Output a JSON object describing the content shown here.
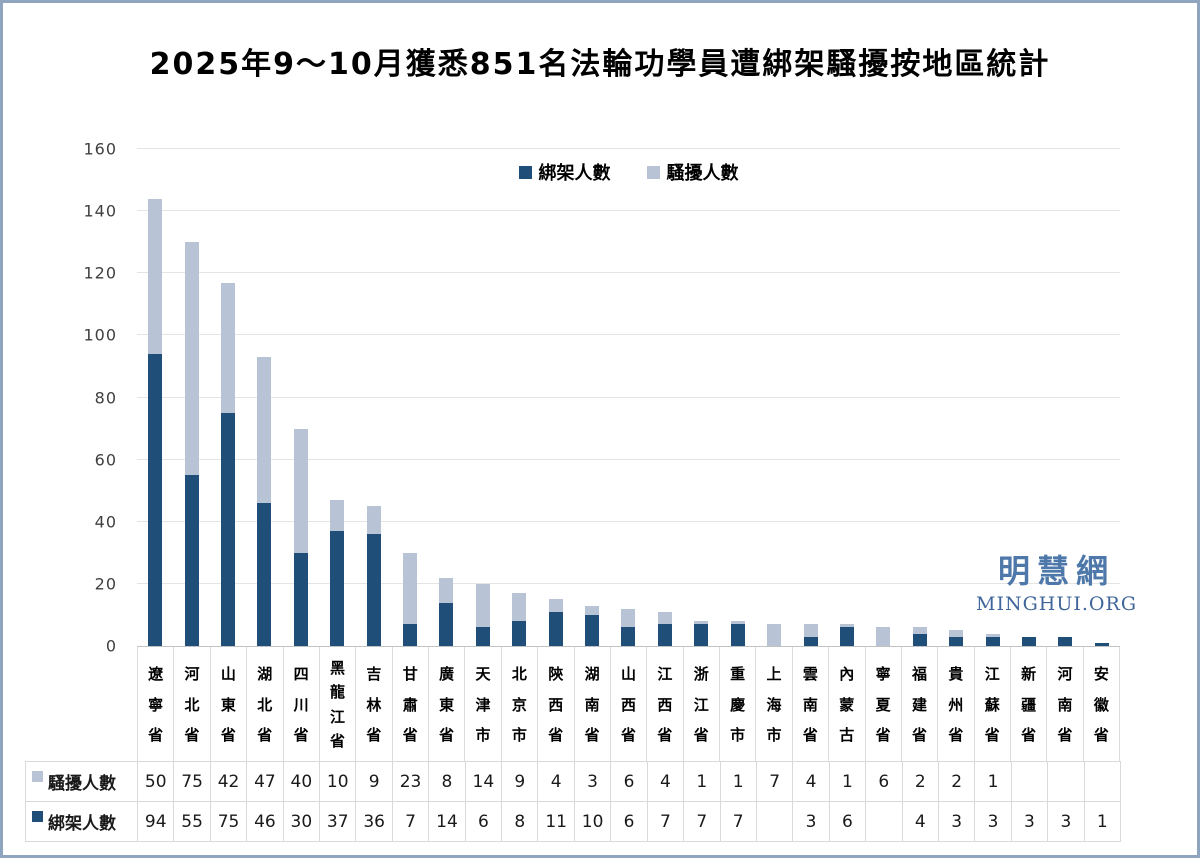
{
  "title": "2025年9～10月獲悉851名法輪功學員遭綁架騷擾按地區統計",
  "legend": {
    "kidnapped": "綁架人數",
    "harassed": "騷擾人數"
  },
  "watermark": {
    "chinese": "明慧網",
    "english": "MINGHUI.ORG"
  },
  "colors": {
    "kidnapped_bar": "#1F4E79",
    "harassed_bar": "#B8C4D6",
    "gridline": "#E4E4E4",
    "axis_line": "#C2C2C2",
    "table_border": "#D9D9D9",
    "watermark_chinese": "#4E78A9",
    "watermark_english": "#3F659A",
    "frame_border": "#8FA5BF"
  },
  "chart_data": {
    "type": "bar",
    "stacked": true,
    "title": "2025年9～10月獲悉851名法輪功學員遭綁架騷擾按地區統計",
    "xlabel": "",
    "ylabel": "",
    "ylim": [
      0,
      160
    ],
    "ytick_step": 20,
    "yticks": [
      0,
      20,
      40,
      60,
      80,
      100,
      120,
      140,
      160
    ],
    "grid": true,
    "legend_position": "top-center",
    "categories": [
      "遼寧省",
      "河北省",
      "山東省",
      "湖北省",
      "四川省",
      "黑龍江省",
      "吉林省",
      "甘肅省",
      "廣東省",
      "天津市",
      "北京市",
      "陝西省",
      "湖南省",
      "山西省",
      "江西省",
      "浙江省",
      "重慶市",
      "上海市",
      "雲南省",
      "內蒙古",
      "寧夏省",
      "福建省",
      "貴州省",
      "江蘇省",
      "新疆省",
      "河南省",
      "安徽省"
    ],
    "series": [
      {
        "name": "綁架人數",
        "color": "#1F4E79",
        "values": [
          94,
          55,
          75,
          46,
          30,
          37,
          36,
          7,
          14,
          6,
          8,
          11,
          10,
          6,
          7,
          7,
          7,
          null,
          3,
          6,
          null,
          4,
          3,
          3,
          3,
          3,
          1
        ]
      },
      {
        "name": "騷擾人數",
        "color": "#B8C4D6",
        "values": [
          50,
          75,
          42,
          47,
          40,
          10,
          9,
          23,
          8,
          14,
          9,
          4,
          3,
          6,
          4,
          1,
          1,
          7,
          4,
          1,
          6,
          2,
          2,
          1,
          null,
          null,
          null
        ]
      }
    ]
  },
  "table": {
    "row_order": [
      "騷擾人數",
      "綁架人數"
    ]
  }
}
